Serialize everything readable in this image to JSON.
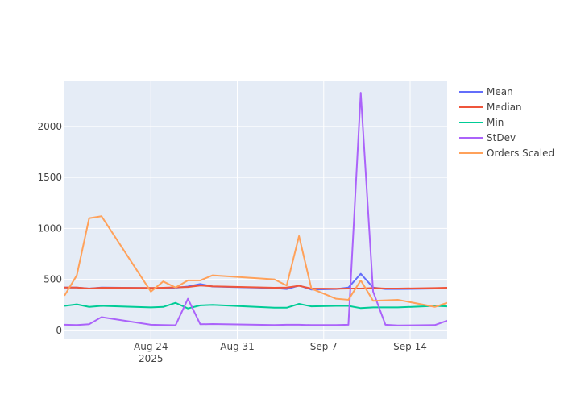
{
  "chart_data": {
    "type": "line",
    "title": "",
    "xlabel": "",
    "ylabel": "",
    "x": [
      "2025-08-17",
      "2025-08-18",
      "2025-08-19",
      "2025-08-20",
      "2025-08-24",
      "2025-08-25",
      "2025-08-26",
      "2025-08-27",
      "2025-08-28",
      "2025-08-29",
      "2025-09-03",
      "2025-09-04",
      "2025-09-05",
      "2025-09-06",
      "2025-09-08",
      "2025-09-09",
      "2025-09-10",
      "2025-09-11",
      "2025-09-12",
      "2025-09-13",
      "2025-09-16",
      "2025-09-17"
    ],
    "series": [
      {
        "name": "Mean",
        "color": "#636efa",
        "values": [
          420,
          420,
          410,
          420,
          415,
          412,
          418,
          430,
          455,
          430,
          415,
          405,
          440,
          400,
          405,
          420,
          555,
          420,
          405,
          405,
          410,
          415
        ]
      },
      {
        "name": "Median",
        "color": "#ef553b",
        "values": [
          420,
          420,
          410,
          418,
          416,
          418,
          422,
          425,
          440,
          432,
          418,
          420,
          437,
          410,
          408,
          410,
          410,
          415,
          410,
          410,
          415,
          418
        ]
      },
      {
        "name": "Min",
        "color": "#00cc96",
        "values": [
          240,
          255,
          230,
          240,
          225,
          230,
          270,
          215,
          245,
          250,
          222,
          222,
          260,
          235,
          240,
          240,
          218,
          225,
          225,
          225,
          240,
          235
        ]
      },
      {
        "name": "StDev",
        "color": "#ab63fa",
        "values": [
          55,
          52,
          60,
          130,
          55,
          52,
          50,
          310,
          60,
          62,
          52,
          55,
          55,
          52,
          52,
          55,
          2330,
          380,
          55,
          48,
          52,
          95
        ]
      },
      {
        "name": "Orders Scaled",
        "color": "#ffa15a",
        "values": [
          340,
          540,
          1100,
          1120,
          380,
          480,
          420,
          490,
          490,
          540,
          500,
          440,
          925,
          410,
          310,
          300,
          490,
          290,
          295,
          300,
          230,
          270
        ]
      }
    ],
    "xlim": [
      "2025-08-17",
      "2025-09-17"
    ],
    "ylim": [
      -80,
      2450
    ],
    "xticks": [
      {
        "date": "2025-08-24",
        "label": "Aug 24",
        "sublabel": "2025"
      },
      {
        "date": "2025-08-31",
        "label": "Aug 31",
        "sublabel": ""
      },
      {
        "date": "2025-09-07",
        "label": "Sep 7",
        "sublabel": ""
      },
      {
        "date": "2025-09-14",
        "label": "Sep 14",
        "sublabel": ""
      }
    ],
    "yticks": [
      0,
      500,
      1000,
      1500,
      2000
    ],
    "ytick_labels": [
      "0",
      "500",
      "1000",
      "1500",
      "2000"
    ],
    "grid": true,
    "legend_position": "top-right",
    "plot_background": "#e5ecf6"
  }
}
